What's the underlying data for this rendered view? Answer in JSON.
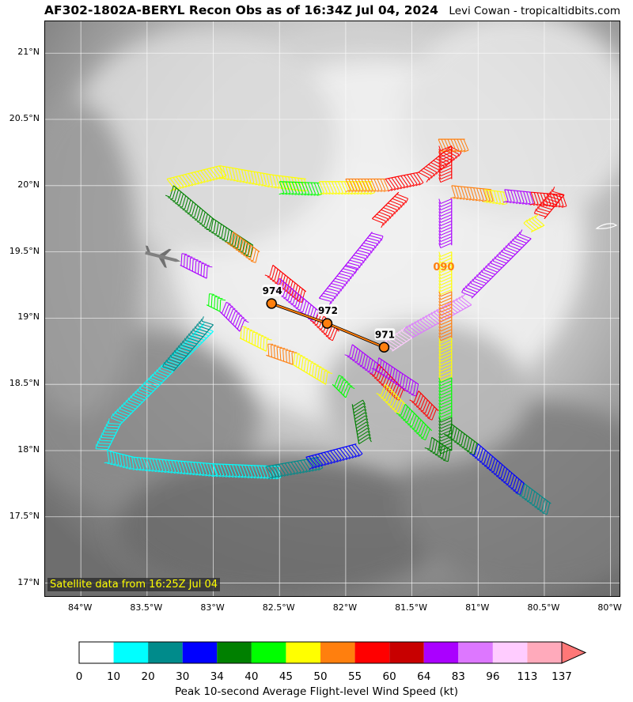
{
  "header": {
    "title": "AF302-1802A-BERYL Recon Obs as of 16:34Z Jul 04, 2024",
    "credit": "Levi Cowan - tropicaltidbits.com"
  },
  "map": {
    "lon_range": [
      -84.27,
      -79.92
    ],
    "lat_range": [
      16.89,
      21.24
    ],
    "lat_ticks": [
      "21°N",
      "20.5°N",
      "20°N",
      "19.5°N",
      "19°N",
      "18.5°N",
      "18°N",
      "17.5°N",
      "17°N"
    ],
    "lat_values": [
      21,
      20.5,
      20,
      19.5,
      19,
      18.5,
      18,
      17.5,
      17
    ],
    "lon_ticks": [
      "84°W",
      "83.5°W",
      "83°W",
      "82.5°W",
      "82°W",
      "81.5°W",
      "81°W",
      "80.5°W",
      "80°W"
    ],
    "lon_values": [
      -84,
      -83.5,
      -83,
      -82.5,
      -82,
      -81.5,
      -81,
      -80.5,
      -80
    ],
    "gridlines": true,
    "satellite_note": "Satellite data from 16:25Z Jul 04"
  },
  "storm_track": {
    "color": "#ff7f0e",
    "points": [
      {
        "label": "974",
        "lon": -82.56,
        "lat": 19.11
      },
      {
        "label": "972",
        "lon": -82.14,
        "lat": 18.96
      },
      {
        "label": "971",
        "lon": -81.71,
        "lat": 18.78
      }
    ]
  },
  "annotations": [
    {
      "text": "090",
      "color": "#ff7f0e",
      "lon": -81.34,
      "lat": 19.36
    }
  ],
  "flight_legs": [
    {
      "color": "#00ffff",
      "points": [
        [
          -83.0,
          18.9
        ],
        [
          -83.4,
          18.5
        ],
        [
          -83.7,
          18.2
        ],
        [
          -83.8,
          18.0
        ],
        [
          -83.6,
          17.95
        ],
        [
          -83.0,
          17.9
        ],
        [
          -82.5,
          17.88
        ]
      ]
    },
    {
      "color": "#008b8b",
      "points": [
        [
          -83.0,
          18.95
        ],
        [
          -83.3,
          18.6
        ]
      ]
    },
    {
      "color": "#008b8b",
      "points": [
        [
          -82.6,
          17.88
        ],
        [
          -82.2,
          17.95
        ]
      ]
    },
    {
      "color": "#0000ff",
      "points": [
        [
          -82.3,
          17.95
        ],
        [
          -81.92,
          18.05
        ]
      ]
    },
    {
      "color": "#008000",
      "points": [
        [
          -81.9,
          18.05
        ],
        [
          -81.95,
          18.35
        ]
      ]
    },
    {
      "color": "#00ff00",
      "points": [
        [
          -82.0,
          18.4
        ],
        [
          -82.1,
          18.5
        ]
      ]
    },
    {
      "color": "#ffff00",
      "points": [
        [
          -82.15,
          18.5
        ],
        [
          -82.4,
          18.65
        ]
      ]
    },
    {
      "color": "#ff7f0e",
      "points": [
        [
          -82.4,
          18.65
        ],
        [
          -82.6,
          18.72
        ]
      ]
    },
    {
      "color": "#ffff00",
      "points": [
        [
          -82.6,
          18.75
        ],
        [
          -82.8,
          18.85
        ]
      ]
    },
    {
      "color": "#aa00ff",
      "points": [
        [
          -82.8,
          18.9
        ],
        [
          -82.95,
          19.05
        ]
      ]
    },
    {
      "color": "#00ff00",
      "points": [
        [
          -82.95,
          19.05
        ],
        [
          -83.05,
          19.1
        ]
      ]
    },
    {
      "color": "#aa00ff",
      "points": [
        [
          -83.05,
          19.3
        ],
        [
          -83.25,
          19.4
        ]
      ]
    },
    {
      "color": "#ffff00",
      "points": [
        [
          -83.35,
          20.05
        ],
        [
          -82.95,
          20.15
        ]
      ]
    },
    {
      "color": "#008000",
      "points": [
        [
          -83.3,
          20.0
        ],
        [
          -83.0,
          19.75
        ],
        [
          -82.7,
          19.55
        ]
      ]
    },
    {
      "color": "#ffff00",
      "points": [
        [
          -82.95,
          20.15
        ],
        [
          -82.55,
          20.08
        ],
        [
          -82.3,
          20.05
        ]
      ]
    },
    {
      "color": "#00ff00",
      "points": [
        [
          -82.5,
          20.03
        ],
        [
          -82.2,
          20.02
        ]
      ]
    },
    {
      "color": "#ffff00",
      "points": [
        [
          -82.2,
          20.03
        ],
        [
          -81.8,
          20.03
        ]
      ]
    },
    {
      "color": "#ff7f0e",
      "points": [
        [
          -82.0,
          20.05
        ],
        [
          -81.7,
          20.05
        ]
      ]
    },
    {
      "color": "#ff0000",
      "points": [
        [
          -81.7,
          20.05
        ],
        [
          -81.45,
          20.1
        ]
      ]
    },
    {
      "color": "#ff7f0e",
      "points": [
        [
          -82.85,
          19.65
        ],
        [
          -82.65,
          19.5
        ]
      ]
    },
    {
      "color": "#ff0000",
      "points": [
        [
          -82.55,
          19.4
        ],
        [
          -82.3,
          19.2
        ]
      ]
    },
    {
      "color": "#aa00ff",
      "points": [
        [
          -82.5,
          19.3
        ],
        [
          -82.2,
          19.05
        ]
      ]
    },
    {
      "color": "#ff0000",
      "points": [
        [
          -82.2,
          19.05
        ],
        [
          -82.05,
          18.9
        ]
      ]
    },
    {
      "color": "#aa00ff",
      "points": [
        [
          -81.95,
          18.8
        ],
        [
          -81.75,
          18.65
        ]
      ]
    },
    {
      "color": "#ff0000",
      "points": [
        [
          -81.75,
          18.65
        ],
        [
          -81.55,
          18.45
        ]
      ]
    },
    {
      "color": "#ffff00",
      "points": [
        [
          -81.7,
          18.5
        ],
        [
          -81.55,
          18.35
        ]
      ]
    },
    {
      "color": "#00ff00",
      "points": [
        [
          -81.55,
          18.35
        ],
        [
          -81.35,
          18.15
        ]
      ]
    },
    {
      "color": "#008000",
      "points": [
        [
          -81.35,
          18.1
        ],
        [
          -81.2,
          18.0
        ]
      ]
    },
    {
      "color": "#aa00ff",
      "points": [
        [
          -82.2,
          19.15
        ],
        [
          -82.0,
          19.4
        ],
        [
          -81.8,
          19.65
        ]
      ]
    },
    {
      "color": "#ff0000",
      "points": [
        [
          -81.8,
          19.75
        ],
        [
          -81.6,
          19.95
        ]
      ]
    },
    {
      "color": "#ff0000",
      "points": [
        [
          -81.45,
          20.1
        ],
        [
          -81.2,
          20.3
        ]
      ]
    },
    {
      "color": "#ff7f0e",
      "points": [
        [
          -81.3,
          20.35
        ],
        [
          -81.1,
          20.35
        ]
      ]
    },
    {
      "color": "#ff0000",
      "points": [
        [
          -81.2,
          20.3
        ],
        [
          -81.2,
          20.05
        ]
      ]
    },
    {
      "color": "#ff7f0e",
      "points": [
        [
          -81.2,
          20.0
        ],
        [
          -80.9,
          19.97
        ]
      ]
    },
    {
      "color": "#ffff00",
      "points": [
        [
          -80.95,
          19.97
        ],
        [
          -80.8,
          19.95
        ]
      ]
    },
    {
      "color": "#aa00ff",
      "points": [
        [
          -80.8,
          19.97
        ],
        [
          -80.6,
          19.95
        ]
      ]
    },
    {
      "color": "#ff0000",
      "points": [
        [
          -80.6,
          19.95
        ],
        [
          -80.35,
          19.93
        ]
      ]
    },
    {
      "color": "#ff0000",
      "points": [
        [
          -80.35,
          19.93
        ],
        [
          -80.5,
          19.75
        ]
      ]
    },
    {
      "color": "#ffff00",
      "points": [
        [
          -80.5,
          19.7
        ],
        [
          -80.6,
          19.65
        ]
      ]
    },
    {
      "color": "#aa00ff",
      "points": [
        [
          -80.6,
          19.6
        ],
        [
          -81.05,
          19.15
        ]
      ]
    },
    {
      "color": "#dd77ff",
      "points": [
        [
          -81.05,
          19.1
        ],
        [
          -81.5,
          18.85
        ]
      ]
    },
    {
      "color": "#ffccff",
      "points": [
        [
          -81.5,
          18.85
        ],
        [
          -81.65,
          18.75
        ]
      ]
    },
    {
      "color": "#aa00ff",
      "points": [
        [
          -81.2,
          19.9
        ],
        [
          -81.2,
          19.55
        ]
      ]
    },
    {
      "color": "#ffff00",
      "points": [
        [
          -81.2,
          19.5
        ],
        [
          -81.2,
          19.2
        ]
      ]
    },
    {
      "color": "#ff7f0e",
      "points": [
        [
          -81.2,
          19.2
        ],
        [
          -81.2,
          18.85
        ]
      ]
    },
    {
      "color": "#ffff00",
      "points": [
        [
          -81.2,
          18.85
        ],
        [
          -81.2,
          18.55
        ]
      ]
    },
    {
      "color": "#00ff00",
      "points": [
        [
          -81.2,
          18.55
        ],
        [
          -81.2,
          18.25
        ]
      ]
    },
    {
      "color": "#008000",
      "points": [
        [
          -81.2,
          18.25
        ],
        [
          -81.2,
          18.0
        ]
      ]
    },
    {
      "color": "#008000",
      "points": [
        [
          -81.2,
          18.2
        ],
        [
          -81.0,
          18.05
        ]
      ]
    },
    {
      "color": "#0000ff",
      "points": [
        [
          -81.0,
          18.05
        ],
        [
          -80.65,
          17.75
        ]
      ]
    },
    {
      "color": "#008b8b",
      "points": [
        [
          -80.65,
          17.75
        ],
        [
          -80.45,
          17.6
        ]
      ]
    },
    {
      "color": "#aa00ff",
      "points": [
        [
          -81.75,
          18.7
        ],
        [
          -81.45,
          18.5
        ]
      ]
    },
    {
      "color": "#ff0000",
      "points": [
        [
          -81.45,
          18.45
        ],
        [
          -81.3,
          18.3
        ]
      ]
    }
  ],
  "colorbar": {
    "label": "Peak 10-second Average Flight-level Wind Speed (kt)",
    "ticks": [
      "0",
      "10",
      "20",
      "30",
      "34",
      "40",
      "45",
      "50",
      "55",
      "60",
      "64",
      "83",
      "96",
      "113",
      "137"
    ],
    "colors": [
      "#ffffff",
      "#00ffff",
      "#008b8b",
      "#0000ff",
      "#008000",
      "#00ff00",
      "#ffff00",
      "#ff7f0e",
      "#ff0000",
      "#c80000",
      "#aa00ff",
      "#dd77ff",
      "#ffccff",
      "#ffaabb"
    ],
    "extend_color": "#ff7777"
  }
}
